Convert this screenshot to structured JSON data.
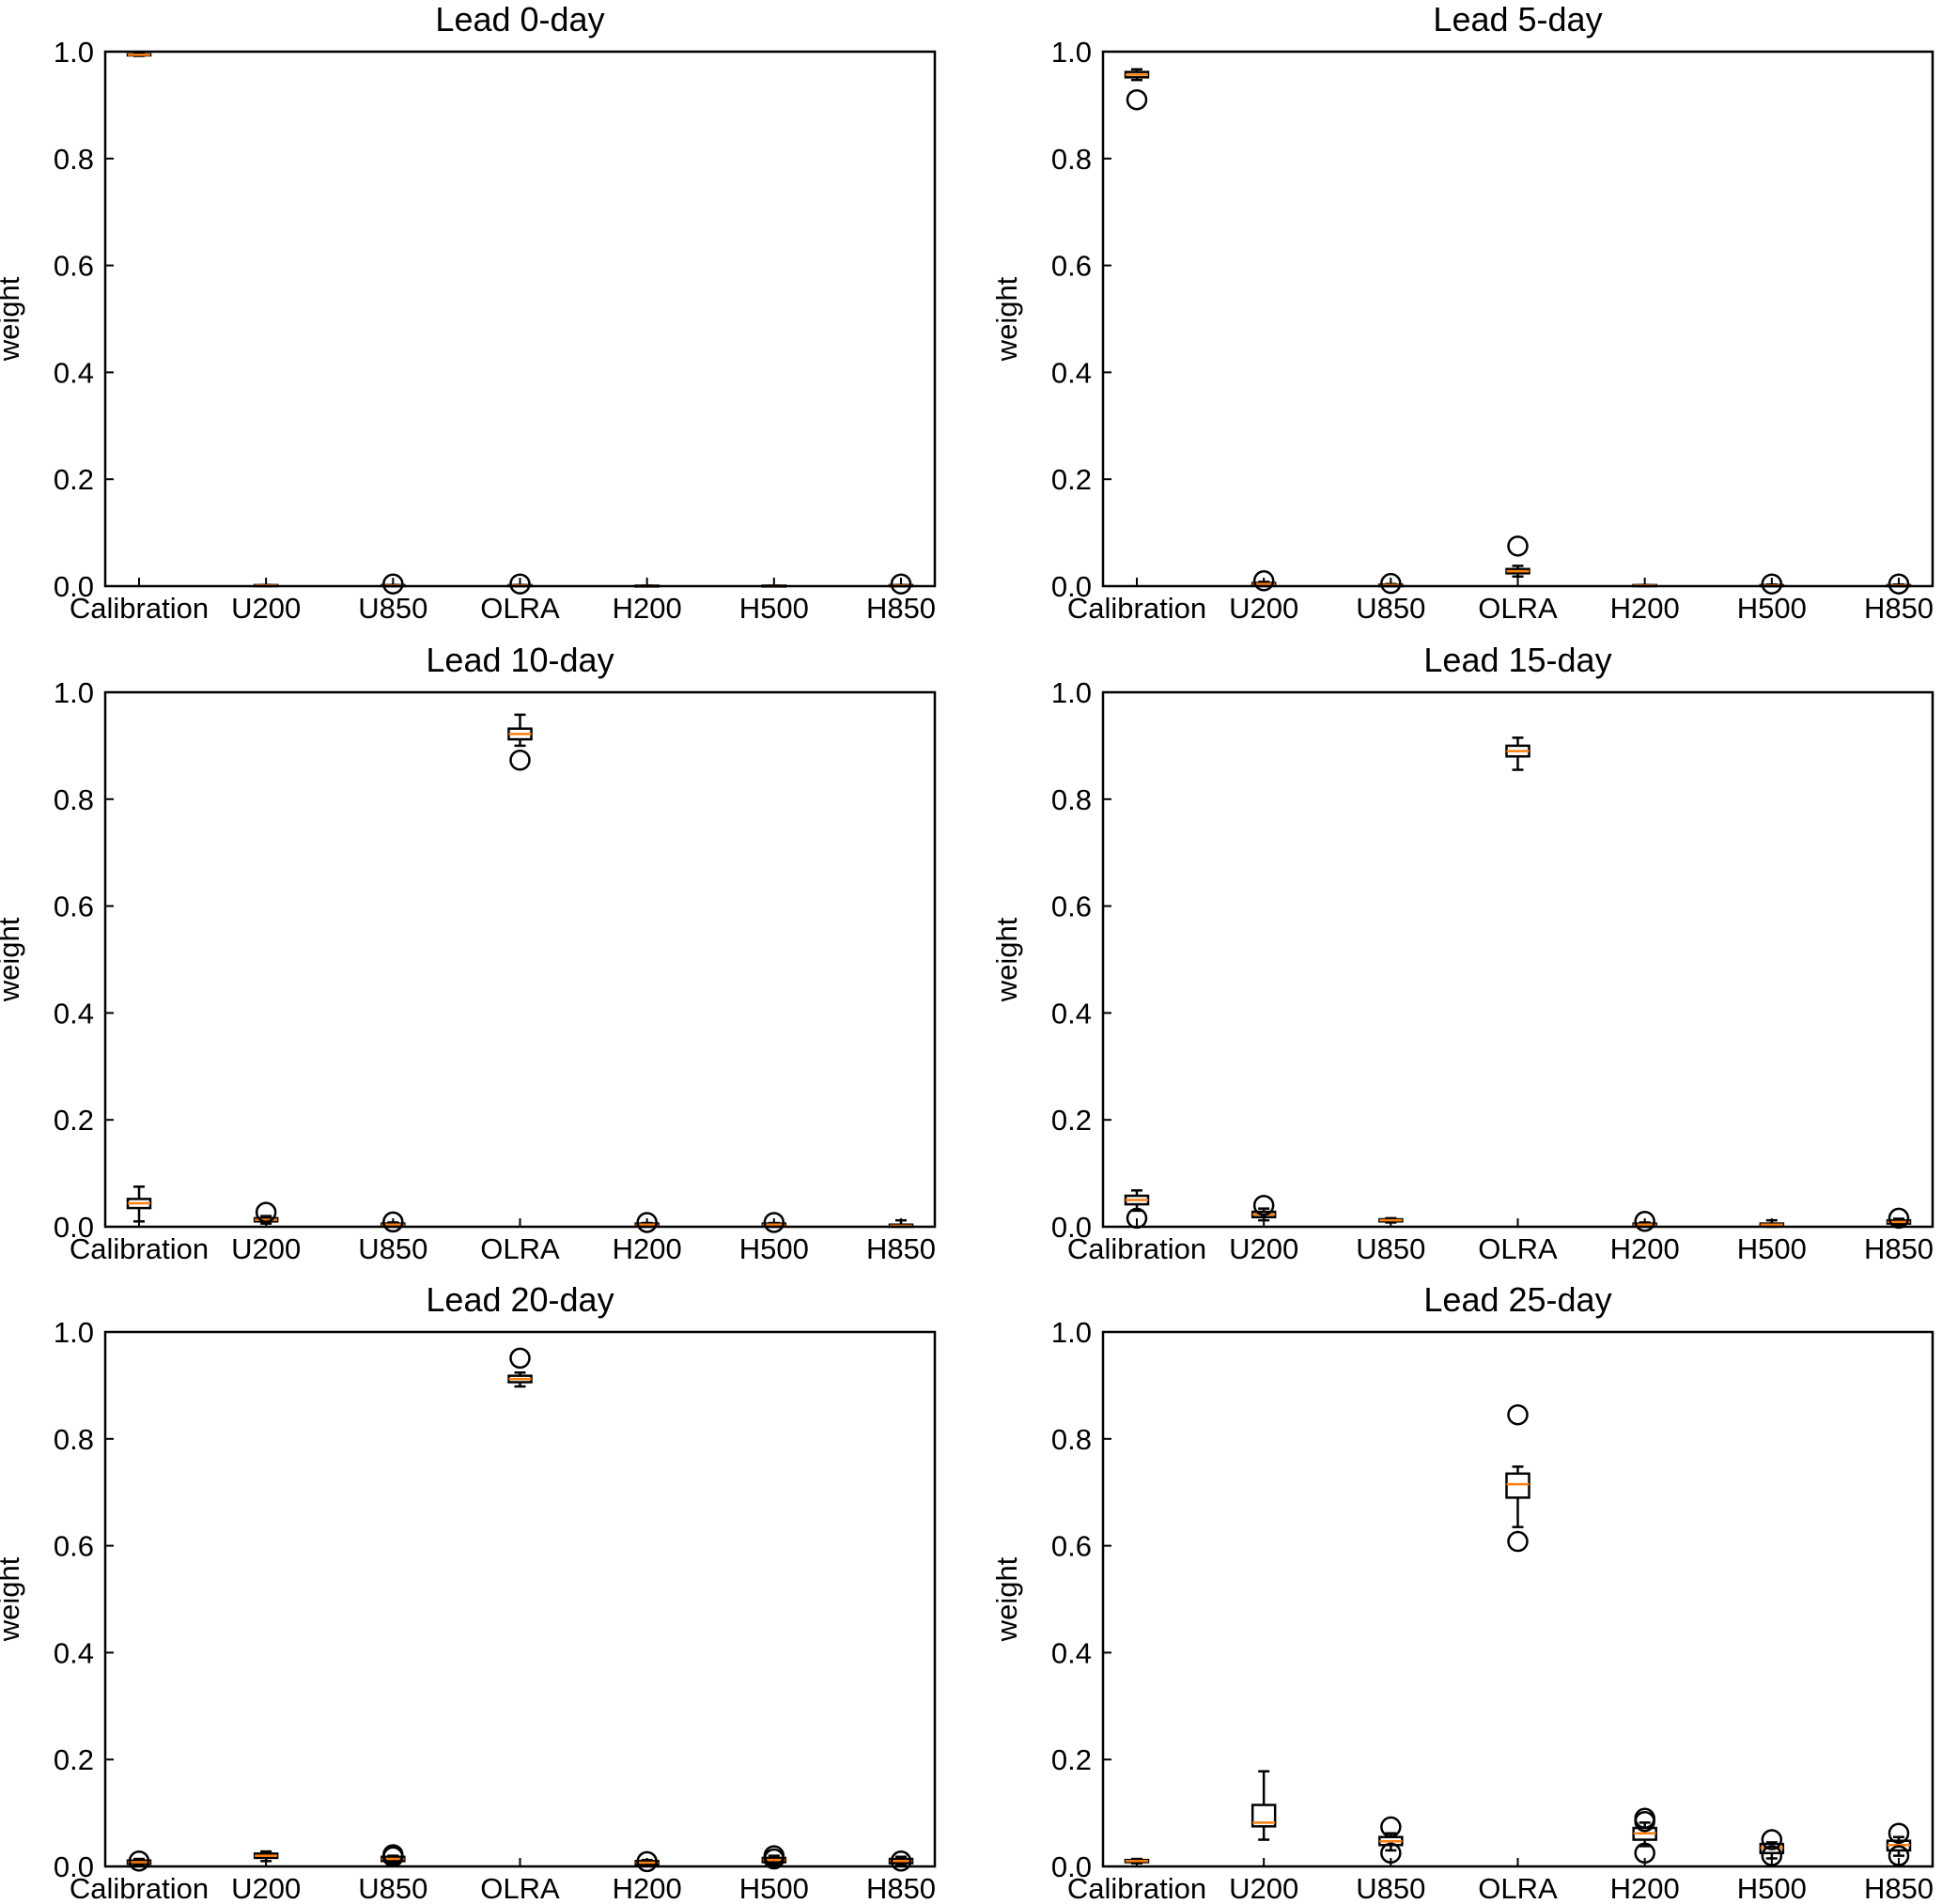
{
  "colors": {
    "box": "#000000",
    "median": "#ff7f0e",
    "flier": "#000000",
    "axes": "#000000",
    "background": "#ffffff"
  },
  "chart_data": [
    {
      "type": "box",
      "title": "Lead 0-day",
      "ylabel": "weight",
      "ylim": [
        0,
        1.0
      ],
      "yticks": [
        0.0,
        0.2,
        0.4,
        0.6,
        0.8,
        1.0
      ],
      "ytick_labels": [
        "0.0",
        "0.2",
        "0.4",
        "0.6",
        "0.8",
        "1.0"
      ],
      "categories": [
        "Calibration",
        "U200",
        "U850",
        "OLRA",
        "H200",
        "H500",
        "H850"
      ],
      "boxes": [
        {
          "q1": 0.993,
          "median": 0.994,
          "q3": 0.995,
          "whislo": 0.992,
          "whishi": 0.996,
          "fliers": []
        },
        {
          "q1": 0.0,
          "median": 0.001,
          "q3": 0.002,
          "whislo": 0.0,
          "whishi": 0.002,
          "fliers": []
        },
        {
          "q1": 0.0,
          "median": 0.001,
          "q3": 0.002,
          "whislo": 0.0,
          "whishi": 0.002,
          "fliers": [
            0.004
          ]
        },
        {
          "q1": 0.0,
          "median": 0.001,
          "q3": 0.002,
          "whislo": 0.0,
          "whishi": 0.002,
          "fliers": [
            0.004
          ]
        },
        {
          "q1": 0.0,
          "median": 0.0,
          "q3": 0.001,
          "whislo": 0.0,
          "whishi": 0.001,
          "fliers": []
        },
        {
          "q1": 0.0,
          "median": 0.0,
          "q3": 0.001,
          "whislo": 0.0,
          "whishi": 0.001,
          "fliers": []
        },
        {
          "q1": 0.0,
          "median": 0.001,
          "q3": 0.002,
          "whislo": 0.0,
          "whishi": 0.002,
          "fliers": [
            0.004
          ]
        }
      ]
    },
    {
      "type": "box",
      "title": "Lead 5-day",
      "ylabel": "weight",
      "ylim": [
        0,
        1.0
      ],
      "yticks": [
        0.0,
        0.2,
        0.4,
        0.6,
        0.8,
        1.0
      ],
      "ytick_labels": [
        "0.0",
        "0.2",
        "0.4",
        "0.6",
        "0.8",
        "1.0"
      ],
      "categories": [
        "Calibration",
        "U200",
        "U850",
        "OLRA",
        "H200",
        "H500",
        "H850"
      ],
      "boxes": [
        {
          "q1": 0.952,
          "median": 0.957,
          "q3": 0.962,
          "whislo": 0.947,
          "whishi": 0.967,
          "fliers": [
            0.91
          ]
        },
        {
          "q1": 0.002,
          "median": 0.004,
          "q3": 0.006,
          "whislo": 0.0,
          "whishi": 0.008,
          "fliers": [
            0.01
          ]
        },
        {
          "q1": 0.0,
          "median": 0.002,
          "q3": 0.003,
          "whislo": 0.0,
          "whishi": 0.004,
          "fliers": [
            0.005
          ]
        },
        {
          "q1": 0.024,
          "median": 0.028,
          "q3": 0.032,
          "whislo": 0.018,
          "whishi": 0.038,
          "fliers": [
            0.075
          ]
        },
        {
          "q1": 0.0,
          "median": 0.001,
          "q3": 0.002,
          "whislo": 0.0,
          "whishi": 0.002,
          "fliers": []
        },
        {
          "q1": 0.0,
          "median": 0.001,
          "q3": 0.002,
          "whislo": 0.0,
          "whishi": 0.003,
          "fliers": [
            0.004
          ]
        },
        {
          "q1": 0.0,
          "median": 0.001,
          "q3": 0.002,
          "whislo": 0.0,
          "whishi": 0.003,
          "fliers": [
            0.004
          ]
        }
      ]
    },
    {
      "type": "box",
      "title": "Lead 10-day",
      "ylabel": "weight",
      "ylim": [
        0,
        1.0
      ],
      "yticks": [
        0.0,
        0.2,
        0.4,
        0.6,
        0.8,
        1.0
      ],
      "ytick_labels": [
        "0.0",
        "0.2",
        "0.4",
        "0.6",
        "0.8",
        "1.0"
      ],
      "categories": [
        "Calibration",
        "U200",
        "U850",
        "OLRA",
        "H200",
        "H500",
        "H850"
      ],
      "boxes": [
        {
          "q1": 0.035,
          "median": 0.044,
          "q3": 0.052,
          "whislo": 0.01,
          "whishi": 0.075,
          "fliers": []
        },
        {
          "q1": 0.01,
          "median": 0.013,
          "q3": 0.016,
          "whislo": 0.006,
          "whishi": 0.02,
          "fliers": [
            0.027
          ]
        },
        {
          "q1": 0.002,
          "median": 0.004,
          "q3": 0.006,
          "whislo": 0.0,
          "whishi": 0.008,
          "fliers": [
            0.009
          ]
        },
        {
          "q1": 0.912,
          "median": 0.922,
          "q3": 0.932,
          "whislo": 0.9,
          "whishi": 0.958,
          "fliers": [
            0.873
          ]
        },
        {
          "q1": 0.002,
          "median": 0.004,
          "q3": 0.006,
          "whislo": 0.0,
          "whishi": 0.007,
          "fliers": [
            0.008
          ]
        },
        {
          "q1": 0.002,
          "median": 0.004,
          "q3": 0.006,
          "whislo": 0.0,
          "whishi": 0.007,
          "fliers": [
            0.008
          ]
        },
        {
          "q1": 0.0,
          "median": 0.002,
          "q3": 0.004,
          "whislo": 0.0,
          "whishi": 0.012,
          "fliers": []
        }
      ]
    },
    {
      "type": "box",
      "title": "Lead 15-day",
      "ylabel": "weight",
      "ylim": [
        0,
        1.0
      ],
      "yticks": [
        0.0,
        0.2,
        0.4,
        0.6,
        0.8,
        1.0
      ],
      "ytick_labels": [
        "0.0",
        "0.2",
        "0.4",
        "0.6",
        "0.8",
        "1.0"
      ],
      "categories": [
        "Calibration",
        "U200",
        "U850",
        "OLRA",
        "H200",
        "H500",
        "H850"
      ],
      "boxes": [
        {
          "q1": 0.042,
          "median": 0.05,
          "q3": 0.058,
          "whislo": 0.03,
          "whishi": 0.068,
          "fliers": [
            0.016
          ]
        },
        {
          "q1": 0.018,
          "median": 0.023,
          "q3": 0.028,
          "whislo": 0.012,
          "whishi": 0.034,
          "fliers": [
            0.04
          ]
        },
        {
          "q1": 0.01,
          "median": 0.012,
          "q3": 0.014,
          "whislo": 0.008,
          "whishi": 0.016,
          "fliers": []
        },
        {
          "q1": 0.88,
          "median": 0.89,
          "q3": 0.9,
          "whislo": 0.855,
          "whishi": 0.915,
          "fliers": []
        },
        {
          "q1": 0.002,
          "median": 0.004,
          "q3": 0.006,
          "whislo": 0.0,
          "whishi": 0.008,
          "fliers": [
            0.01
          ]
        },
        {
          "q1": 0.002,
          "median": 0.004,
          "q3": 0.006,
          "whislo": 0.0,
          "whishi": 0.012,
          "fliers": []
        },
        {
          "q1": 0.006,
          "median": 0.009,
          "q3": 0.012,
          "whislo": 0.004,
          "whishi": 0.015,
          "fliers": [
            0.016
          ]
        }
      ]
    },
    {
      "type": "box",
      "title": "Lead 20-day",
      "ylabel": "weight",
      "ylim": [
        0,
        1.0
      ],
      "yticks": [
        0.0,
        0.2,
        0.4,
        0.6,
        0.8,
        1.0
      ],
      "ytick_labels": [
        "0.0",
        "0.2",
        "0.4",
        "0.6",
        "0.8",
        "1.0"
      ],
      "categories": [
        "Calibration",
        "U200",
        "U850",
        "OLRA",
        "H200",
        "H500",
        "H850"
      ],
      "boxes": [
        {
          "q1": 0.005,
          "median": 0.008,
          "q3": 0.011,
          "whislo": 0.002,
          "whishi": 0.014,
          "fliers": [
            0.01
          ]
        },
        {
          "q1": 0.016,
          "median": 0.02,
          "q3": 0.024,
          "whislo": 0.01,
          "whishi": 0.028,
          "fliers": []
        },
        {
          "q1": 0.01,
          "median": 0.014,
          "q3": 0.018,
          "whislo": 0.006,
          "whishi": 0.02,
          "fliers": [
            0.018,
            0.022
          ]
        },
        {
          "q1": 0.906,
          "median": 0.912,
          "q3": 0.918,
          "whislo": 0.898,
          "whishi": 0.924,
          "fliers": [
            0.951
          ]
        },
        {
          "q1": 0.004,
          "median": 0.007,
          "q3": 0.01,
          "whislo": 0.002,
          "whishi": 0.012,
          "fliers": [
            0.009
          ]
        },
        {
          "q1": 0.008,
          "median": 0.012,
          "q3": 0.016,
          "whislo": 0.004,
          "whishi": 0.02,
          "fliers": [
            0.014,
            0.02
          ]
        },
        {
          "q1": 0.006,
          "median": 0.01,
          "q3": 0.014,
          "whislo": 0.002,
          "whishi": 0.018,
          "fliers": [
            0.01
          ]
        }
      ]
    },
    {
      "type": "box",
      "title": "Lead 25-day",
      "ylabel": "weight",
      "ylim": [
        0,
        1.0
      ],
      "yticks": [
        0.0,
        0.2,
        0.4,
        0.6,
        0.8,
        1.0
      ],
      "ytick_labels": [
        "0.0",
        "0.2",
        "0.4",
        "0.6",
        "0.8",
        "1.0"
      ],
      "categories": [
        "Calibration",
        "U200",
        "U850",
        "OLRA",
        "H200",
        "H500",
        "H850"
      ],
      "boxes": [
        {
          "q1": 0.008,
          "median": 0.01,
          "q3": 0.012,
          "whislo": 0.006,
          "whishi": 0.014,
          "fliers": []
        },
        {
          "q1": 0.075,
          "median": 0.082,
          "q3": 0.115,
          "whislo": 0.05,
          "whishi": 0.178,
          "fliers": []
        },
        {
          "q1": 0.04,
          "median": 0.047,
          "q3": 0.055,
          "whislo": 0.03,
          "whishi": 0.062,
          "fliers": [
            0.074,
            0.025
          ]
        },
        {
          "q1": 0.69,
          "median": 0.715,
          "q3": 0.735,
          "whislo": 0.635,
          "whishi": 0.748,
          "fliers": [
            0.845,
            0.608
          ]
        },
        {
          "q1": 0.05,
          "median": 0.062,
          "q3": 0.072,
          "whislo": 0.038,
          "whishi": 0.082,
          "fliers": [
            0.09,
            0.084,
            0.025
          ]
        },
        {
          "q1": 0.025,
          "median": 0.035,
          "q3": 0.042,
          "whislo": 0.015,
          "whishi": 0.045,
          "fliers": [
            0.05,
            0.02
          ]
        },
        {
          "q1": 0.03,
          "median": 0.04,
          "q3": 0.048,
          "whislo": 0.02,
          "whishi": 0.055,
          "fliers": [
            0.062,
            0.02
          ]
        }
      ]
    }
  ]
}
